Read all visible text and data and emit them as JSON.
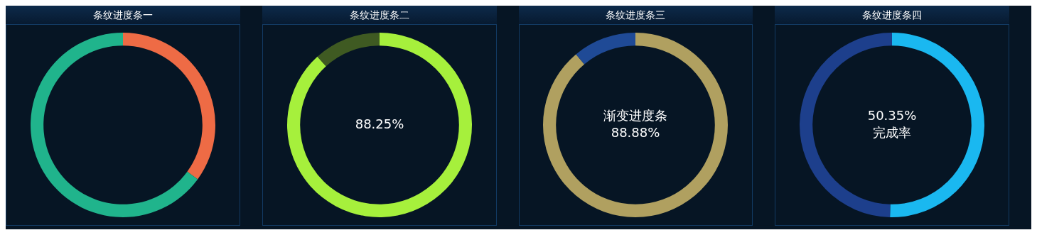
{
  "chart_data": [
    {
      "type": "donut",
      "title": "条纹进度条一",
      "categories": [
        null,
        null
      ],
      "values": [
        35,
        65
      ],
      "colors": [
        "#ee6b45",
        "#20b48c"
      ],
      "legend": false
    },
    {
      "type": "donut",
      "title": "条纹进度条二",
      "categories": [
        null,
        null
      ],
      "values": [
        88.25,
        11.75
      ],
      "colors": [
        "#a6f03c",
        "#3f5a22"
      ],
      "value_labels": [
        "88.25%",
        null
      ],
      "legend": false
    },
    {
      "type": "donut",
      "title": "条纹进度条三",
      "subtitle": "渐变进度条",
      "categories": [
        null,
        null
      ],
      "values": [
        88.88,
        11.12
      ],
      "colors": [
        "#b0a060",
        "#1f4a96"
      ],
      "value_labels": [
        "88.88%",
        null
      ],
      "legend": false
    },
    {
      "type": "donut",
      "title": "条纹进度条四",
      "categories": [
        null,
        null
      ],
      "values": [
        50.35,
        49.65
      ],
      "colors": [
        "#1ab8f0",
        "#1d3f8c"
      ],
      "value_labels": [
        "50.35%",
        null
      ],
      "annotations": [
        "完成率"
      ],
      "legend": false
    }
  ]
}
